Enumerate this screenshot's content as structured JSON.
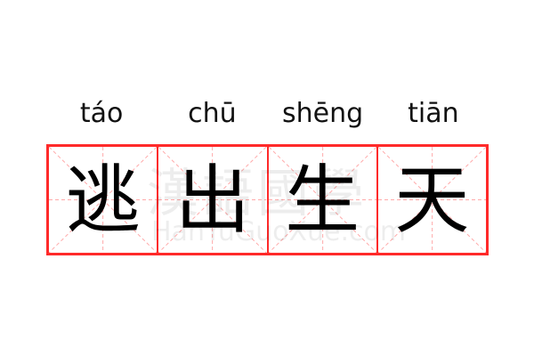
{
  "pinyin": [
    "táo",
    "chū",
    "shēng",
    "tiān"
  ],
  "characters": [
    "逃",
    "出",
    "生",
    "天"
  ],
  "watermark": {
    "chinese": "漢語國學",
    "latin": "HanYuGuoXue.com"
  },
  "colors": {
    "grid_border": "#ff2a2a",
    "grid_guides": "#ffaaaa",
    "text": "#000000"
  }
}
